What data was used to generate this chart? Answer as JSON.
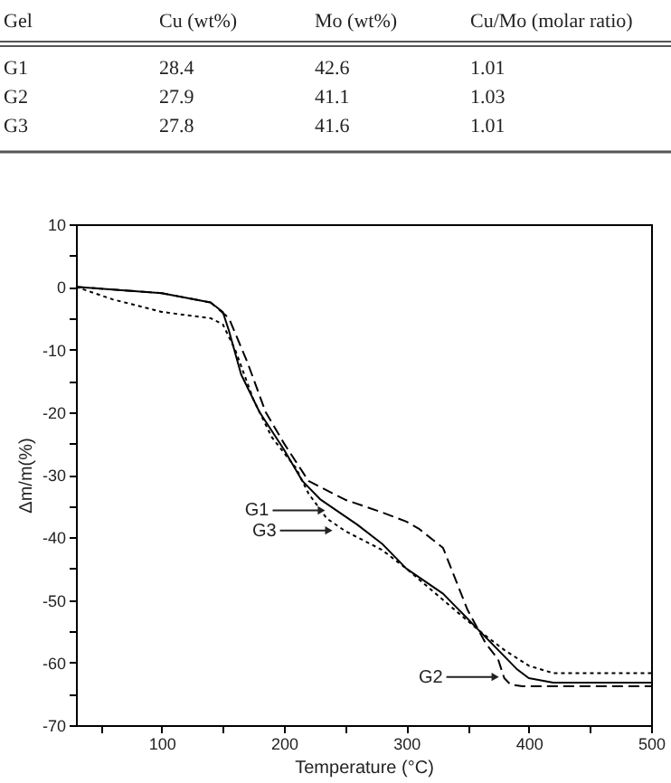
{
  "chart_data": [
    {
      "type": "other",
      "xlabel": "Gel",
      "categories": [
        "G1",
        "G2",
        "G3"
      ],
      "data_labels": true,
      "series": [
        {
          "name": "Cu (wt%)",
          "values": [
            28.4,
            27.9,
            27.8
          ]
        },
        {
          "name": "Mo (wt%)",
          "values": [
            42.6,
            41.1,
            41.6
          ]
        },
        {
          "name": "Cu/Mo (molar ratio)",
          "values": [
            1.01,
            1.03,
            1.01
          ]
        }
      ]
    },
    {
      "type": "line",
      "xlabel": "Temperature (°C)",
      "ylabel": "Δm/m(%)",
      "xlim": [
        30,
        500
      ],
      "ylim": [
        -70,
        10
      ],
      "xticks": [
        {
          "value": 50,
          "label": null
        },
        100,
        {
          "value": 150,
          "label": null
        },
        200,
        {
          "value": 250,
          "label": null
        },
        300,
        {
          "value": 350,
          "label": null
        },
        400,
        {
          "value": 450,
          "label": null
        },
        500
      ],
      "yticks": [
        -70,
        {
          "value": -65,
          "label": null
        },
        -60,
        {
          "value": -55,
          "label": null
        },
        -50,
        {
          "value": -45,
          "label": null
        },
        -40,
        {
          "value": -35,
          "label": null
        },
        -30,
        {
          "value": -25,
          "label": null
        },
        -20,
        {
          "value": -15,
          "label": null
        },
        -10,
        {
          "value": -5,
          "label": null
        },
        0,
        {
          "value": 5,
          "label": null
        },
        10
      ],
      "marker": "none",
      "annotations": [
        {
          "text": "G1",
          "x": 238,
          "y": -35.7
        },
        {
          "text": "G3",
          "x": 244,
          "y": -38.9
        },
        {
          "text": "G2",
          "x": 380,
          "y": -62.3
        }
      ],
      "series": [
        {
          "color": "#000000",
          "line_style": "solid",
          "x": [
            30,
            100,
            140,
            150,
            155,
            165,
            180,
            200,
            215,
            230,
            260,
            280,
            300,
            330,
            360,
            375,
            390,
            400,
            420,
            500
          ],
          "values": [
            0,
            -1,
            -2.5,
            -4,
            -7,
            -14,
            -20,
            -26,
            -31,
            -34,
            -38,
            -41,
            -45,
            -49,
            -55,
            -58,
            -61,
            -62.5,
            -63.2,
            -63.2
          ]
        },
        {
          "color": "#000000",
          "line_style": "dashed",
          "x": [
            30,
            100,
            140,
            155,
            170,
            185,
            200,
            220,
            250,
            280,
            300,
            310,
            330,
            350,
            365,
            375,
            380,
            385,
            395,
            500
          ],
          "values": [
            0,
            -1,
            -2.5,
            -5,
            -12,
            -20,
            -25,
            -31,
            -34,
            -36,
            -37.5,
            -38.6,
            -41.7,
            -51.6,
            -57,
            -59.5,
            -62.5,
            -63.5,
            -63.8,
            -63.8
          ]
        },
        {
          "color": "#000000",
          "line_style": "dotted",
          "x": [
            30,
            60,
            100,
            140,
            150,
            160,
            175,
            190,
            210,
            220,
            235,
            250,
            280,
            300,
            330,
            360,
            380,
            400,
            420,
            500
          ],
          "values": [
            0,
            -2,
            -4,
            -5,
            -6,
            -10,
            -18,
            -24,
            -29,
            -33,
            -37,
            -39,
            -42,
            -45,
            -50,
            -55,
            -58,
            -60.5,
            -61.7,
            -61.7
          ]
        }
      ]
    }
  ]
}
